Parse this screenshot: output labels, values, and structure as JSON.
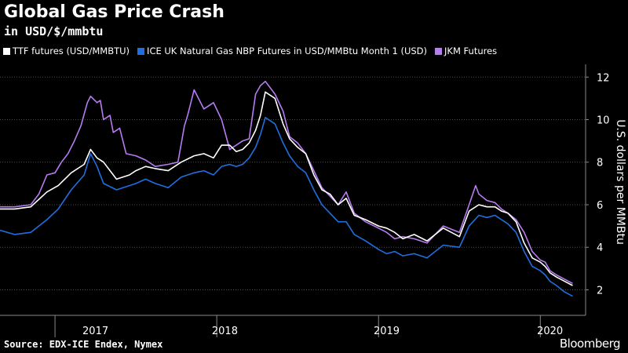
{
  "colors": {
    "ttf": "#ffffff",
    "nbp": "#1f6fe0",
    "jkm": "#b77cf0",
    "grid": "#4a4a4a"
  },
  "chart_data": {
    "type": "line",
    "title": "Global Gas Price Crash",
    "subtitle": "in USD/$/mmbtu",
    "ylabel": "U.S. dollars per MMBtu",
    "xlabel": "",
    "ylim": [
      0.8,
      12.6
    ],
    "yticks": [
      2,
      4,
      6,
      8,
      10,
      12
    ],
    "xlim": [
      2016.66,
      2020.28
    ],
    "years": [
      {
        "label": "2017",
        "center": 2017.25
      },
      {
        "label": "2018",
        "center": 2018.05
      },
      {
        "label": "2019",
        "center": 2019.05
      },
      {
        "label": "2020",
        "center": 2020.06
      }
    ],
    "year_dividers": [
      2017.0,
      2018.0,
      2019.0,
      2020.0
    ],
    "series": [
      {
        "name": "TTF futures (USD/MMBTU)",
        "color": "#ffffff",
        "x": [
          2016.66,
          2016.75,
          2016.85,
          2016.95,
          2017.02,
          2017.1,
          2017.18,
          2017.22,
          2017.26,
          2017.3,
          2017.38,
          2017.46,
          2017.5,
          2017.56,
          2017.62,
          2017.7,
          2017.78,
          2017.86,
          2017.92,
          2017.98,
          2018.03,
          2018.08,
          2018.12,
          2018.16,
          2018.2,
          2018.24,
          2018.27,
          2018.3,
          2018.36,
          2018.41,
          2018.45,
          2018.5,
          2018.55,
          2018.6,
          2018.65,
          2018.7,
          2018.75,
          2018.8,
          2018.85,
          2018.92,
          2019.0,
          2019.05,
          2019.1,
          2019.15,
          2019.22,
          2019.3,
          2019.4,
          2019.5,
          2019.56,
          2019.62,
          2019.67,
          2019.72,
          2019.76,
          2019.8,
          2019.85,
          2019.9,
          2019.95,
          2020.0,
          2020.03,
          2020.06,
          2020.1,
          2020.15,
          2020.2
        ],
        "y": [
          5.8,
          5.8,
          5.9,
          6.6,
          6.9,
          7.5,
          7.9,
          8.6,
          8.2,
          8.0,
          7.2,
          7.4,
          7.6,
          7.8,
          7.7,
          7.6,
          8.0,
          8.3,
          8.4,
          8.2,
          8.8,
          8.8,
          8.5,
          8.6,
          8.9,
          9.5,
          10.2,
          11.3,
          11.0,
          9.8,
          9.1,
          8.7,
          8.4,
          7.4,
          6.7,
          6.5,
          6.0,
          6.3,
          5.5,
          5.3,
          5.0,
          4.9,
          4.7,
          4.4,
          4.6,
          4.3,
          4.9,
          4.5,
          5.7,
          6.0,
          5.9,
          5.9,
          5.7,
          5.6,
          5.2,
          4.2,
          3.5,
          3.3,
          3.1,
          2.8,
          2.6,
          2.4,
          2.2
        ]
      },
      {
        "name": "ICE UK Natural Gas NBP Futures in USD/MMBtu Month 1 (USD)",
        "color": "#1f6fe0",
        "x": [
          2016.66,
          2016.75,
          2016.85,
          2016.95,
          2017.02,
          2017.1,
          2017.18,
          2017.22,
          2017.26,
          2017.3,
          2017.38,
          2017.46,
          2017.5,
          2017.56,
          2017.62,
          2017.7,
          2017.78,
          2017.86,
          2017.92,
          2017.98,
          2018.03,
          2018.08,
          2018.12,
          2018.16,
          2018.2,
          2018.24,
          2018.27,
          2018.3,
          2018.36,
          2018.41,
          2018.45,
          2018.5,
          2018.55,
          2018.6,
          2018.65,
          2018.7,
          2018.75,
          2018.8,
          2018.85,
          2018.92,
          2019.0,
          2019.05,
          2019.1,
          2019.15,
          2019.22,
          2019.3,
          2019.4,
          2019.5,
          2019.56,
          2019.62,
          2019.67,
          2019.72,
          2019.76,
          2019.8,
          2019.85,
          2019.9,
          2019.95,
          2020.0,
          2020.03,
          2020.06,
          2020.1,
          2020.15,
          2020.2
        ],
        "y": [
          4.8,
          4.6,
          4.7,
          5.3,
          5.8,
          6.7,
          7.4,
          8.4,
          7.8,
          7.0,
          6.7,
          6.9,
          7.0,
          7.2,
          7.0,
          6.8,
          7.3,
          7.5,
          7.6,
          7.4,
          7.8,
          7.9,
          7.8,
          7.9,
          8.2,
          8.7,
          9.3,
          10.1,
          9.8,
          8.9,
          8.3,
          7.8,
          7.5,
          6.7,
          6.0,
          5.6,
          5.2,
          5.2,
          4.6,
          4.3,
          3.9,
          3.7,
          3.8,
          3.6,
          3.7,
          3.5,
          4.1,
          4.0,
          5.0,
          5.5,
          5.4,
          5.5,
          5.3,
          5.1,
          4.7,
          3.8,
          3.1,
          2.9,
          2.7,
          2.4,
          2.2,
          1.9,
          1.7
        ]
      },
      {
        "name": "JKM Futures",
        "color": "#b77cf0",
        "x": [
          2016.66,
          2016.75,
          2016.85,
          2016.9,
          2016.95,
          2017.0,
          2017.04,
          2017.08,
          2017.12,
          2017.16,
          2017.2,
          2017.22,
          2017.26,
          2017.28,
          2017.3,
          2017.34,
          2017.36,
          2017.4,
          2017.44,
          2017.5,
          2017.56,
          2017.62,
          2017.7,
          2017.76,
          2017.8,
          2017.82,
          2017.86,
          2017.92,
          2017.98,
          2018.03,
          2018.08,
          2018.12,
          2018.16,
          2018.2,
          2018.24,
          2018.27,
          2018.3,
          2018.36,
          2018.41,
          2018.45,
          2018.5,
          2018.55,
          2018.6,
          2018.65,
          2018.7,
          2018.75,
          2018.8,
          2018.85,
          2018.92,
          2019.0,
          2019.05,
          2019.1,
          2019.15,
          2019.22,
          2019.3,
          2019.4,
          2019.5,
          2019.56,
          2019.6,
          2019.62,
          2019.67,
          2019.72,
          2019.76,
          2019.8,
          2019.85,
          2019.9,
          2019.95,
          2020.0,
          2020.03,
          2020.06,
          2020.1,
          2020.15,
          2020.2
        ],
        "y": [
          5.9,
          5.9,
          6.0,
          6.5,
          7.4,
          7.5,
          8.0,
          8.4,
          9.0,
          9.7,
          10.8,
          11.1,
          10.8,
          10.9,
          10.0,
          10.2,
          9.4,
          9.6,
          8.4,
          8.3,
          8.1,
          7.8,
          7.9,
          8.0,
          9.7,
          10.2,
          11.4,
          10.5,
          10.8,
          10.0,
          8.6,
          8.8,
          9.0,
          9.1,
          11.2,
          11.6,
          11.8,
          11.2,
          10.4,
          9.2,
          8.9,
          8.4,
          7.6,
          6.8,
          6.4,
          6.0,
          6.6,
          5.6,
          5.2,
          4.9,
          4.7,
          4.4,
          4.5,
          4.4,
          4.2,
          5.0,
          4.7,
          6.0,
          6.9,
          6.5,
          6.2,
          6.1,
          5.8,
          5.6,
          5.3,
          4.7,
          3.8,
          3.4,
          3.3,
          2.9,
          2.7,
          2.5,
          2.3
        ]
      }
    ]
  },
  "source_text": "Source: EDX-ICE Endex, Nymex",
  "brand_text": "Bloomberg"
}
